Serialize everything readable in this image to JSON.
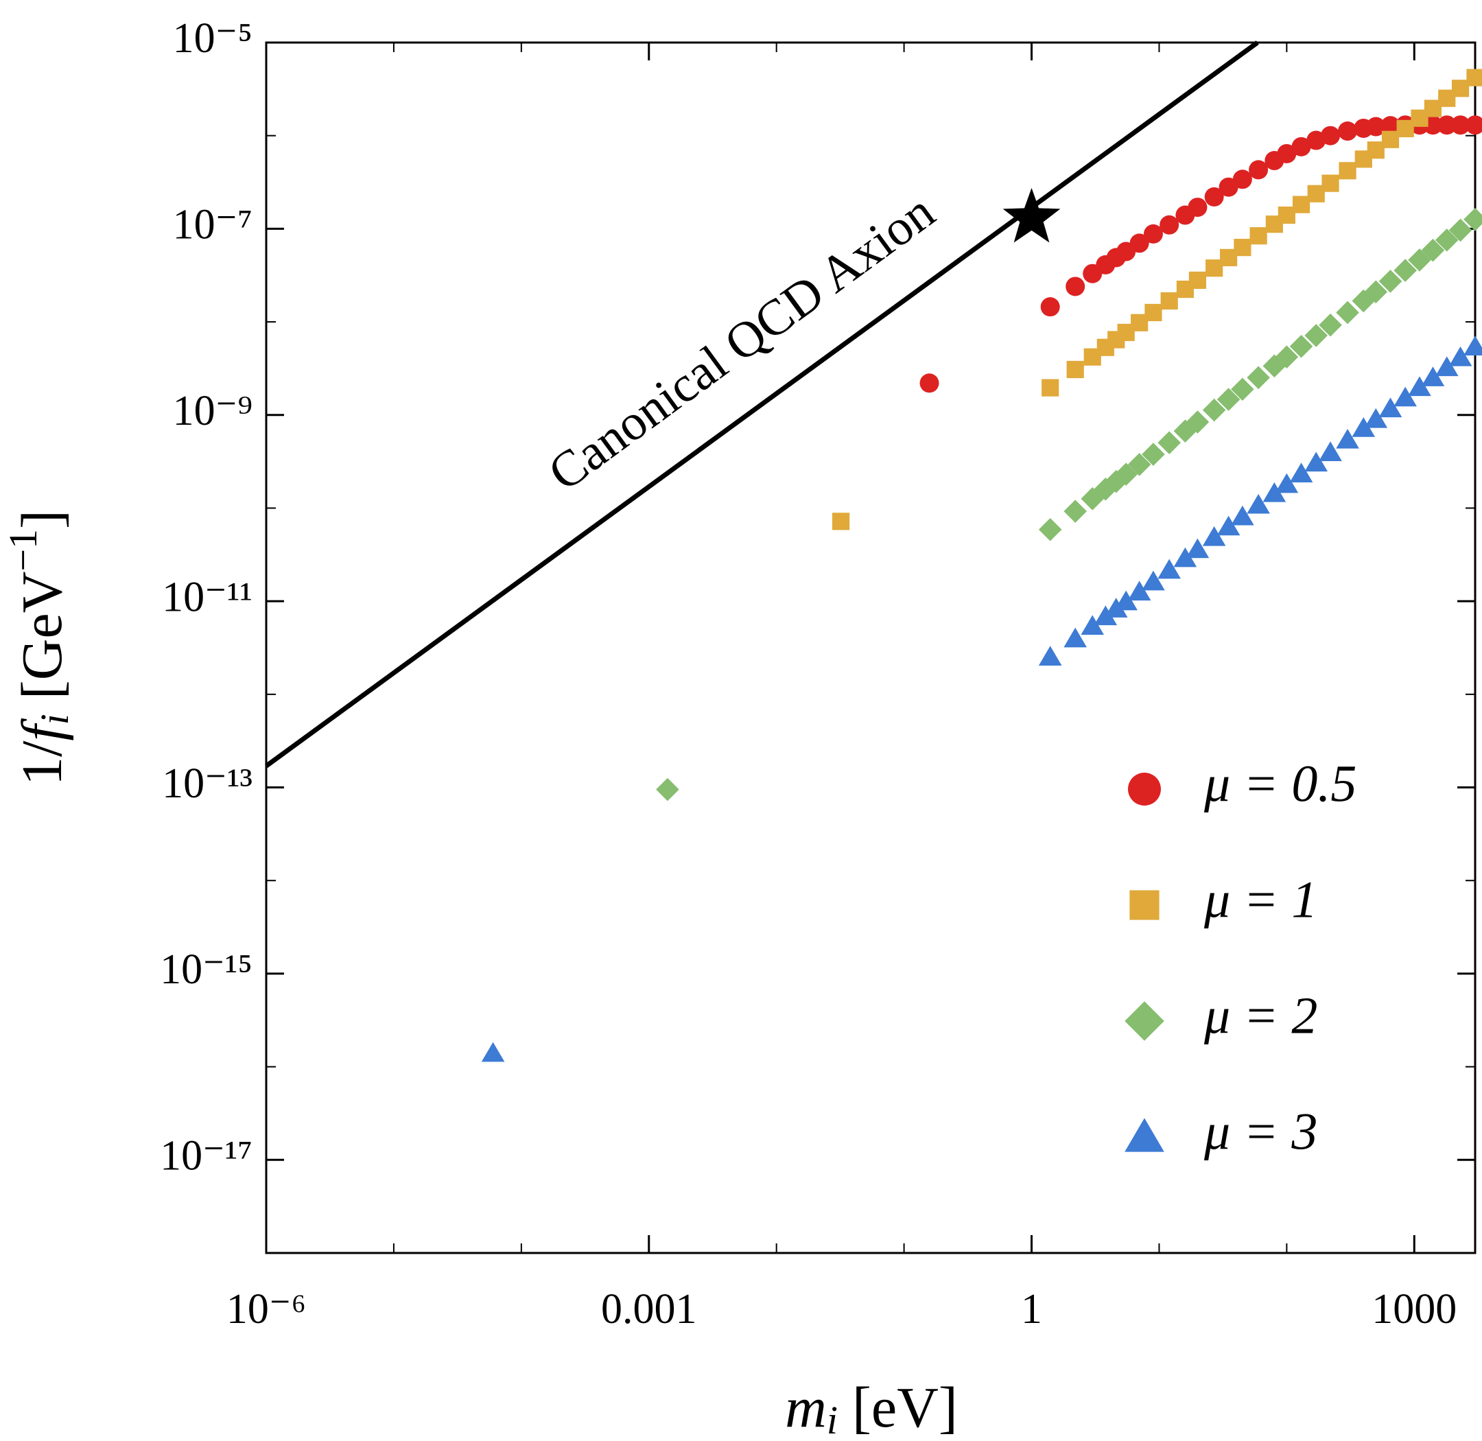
{
  "chart_data": {
    "type": "scatter",
    "xlog": true,
    "ylog": true,
    "xlim": [
      1e-06,
      3000
    ],
    "ylim": [
      1e-18,
      1e-05
    ],
    "xticks": [
      {
        "value": 1e-06,
        "label": "10⁻⁶"
      },
      0.001,
      1,
      1000
    ],
    "xticks_minor": [
      1e-05,
      0.0001,
      0.01,
      0.1,
      10,
      100
    ],
    "yticks": [
      {
        "value": 1e-05,
        "label": "10⁻⁵"
      },
      {
        "value": 1e-07,
        "label": "10⁻⁷"
      },
      {
        "value": 1e-09,
        "label": "10⁻⁹"
      },
      {
        "value": 1e-11,
        "label": "10⁻¹¹"
      },
      {
        "value": 1e-13,
        "label": "10⁻¹³"
      },
      {
        "value": 1e-15,
        "label": "10⁻¹⁵"
      },
      {
        "value": 1e-17,
        "label": "10⁻¹⁷"
      }
    ],
    "yticks_minor": [
      1e-06,
      1e-08,
      1e-10,
      1e-12,
      1e-14,
      1e-16,
      1e-18
    ],
    "xlabel": [
      "m",
      "i",
      " [eV]"
    ],
    "ylabel": [
      "1/",
      "f",
      "i",
      " [GeV",
      "−1",
      "]"
    ],
    "legend": "lower right",
    "line": {
      "name": "Canonical QCD Axion",
      "color": "#000000",
      "x": [
        1e-06,
        59
      ],
      "values": [
        1.7e-13,
        1e-05
      ]
    },
    "star": {
      "x": 1,
      "y": 1.3e-07,
      "color": "#000000"
    },
    "series": [
      {
        "name": "μ = 0.5",
        "color": "#dd2222",
        "marker": "circle",
        "x": [
          0.158,
          1.4,
          2.2,
          3,
          3.8,
          4.6,
          5.5,
          7,
          9,
          12,
          16,
          20,
          27,
          35,
          45,
          60,
          80,
          100,
          130,
          170,
          220,
          300,
          400,
          500,
          650,
          850,
          1100,
          1400,
          1800,
          2300,
          3000
        ],
        "values": [
          2.2e-09,
          1.45e-08,
          2.4e-08,
          3.3e-08,
          4.1e-08,
          4.9e-08,
          5.7e-08,
          7e-08,
          8.8e-08,
          1.1e-07,
          1.4e-07,
          1.7e-07,
          2.2e-07,
          2.8e-07,
          3.4e-07,
          4.3e-07,
          5.4e-07,
          6.4e-07,
          7.6e-07,
          8.9e-07,
          1e-06,
          1.12e-06,
          1.2e-06,
          1.25e-06,
          1.28e-06,
          1.3e-06,
          1.3e-06,
          1.3e-06,
          1.3e-06,
          1.3e-06,
          1.3e-06
        ]
      },
      {
        "name": "μ = 1",
        "color": "#e0a93a",
        "marker": "square",
        "x": [
          0.032,
          1.4,
          2.2,
          3,
          3.8,
          4.6,
          5.5,
          7,
          9,
          12,
          16,
          20,
          27,
          35,
          45,
          60,
          80,
          100,
          130,
          170,
          220,
          300,
          400,
          500,
          650,
          850,
          1100,
          1400,
          1800,
          2300,
          3000
        ],
        "values": [
          7.2e-11,
          1.96e-09,
          3.08e-09,
          4.2e-09,
          5.32e-09,
          6.44e-09,
          7.7e-09,
          9.8e-09,
          1.26e-08,
          1.68e-08,
          2.24e-08,
          2.8e-08,
          3.78e-08,
          4.9e-08,
          6.3e-08,
          8.4e-08,
          1.12e-07,
          1.4e-07,
          1.82e-07,
          2.38e-07,
          3.08e-07,
          4.2e-07,
          5.6e-07,
          7e-07,
          9.1e-07,
          1.19e-06,
          1.54e-06,
          1.96e-06,
          2.52e-06,
          3.22e-06,
          4.2e-06
        ]
      },
      {
        "name": "μ = 2",
        "color": "#86bd6e",
        "marker": "diamond",
        "x": [
          0.0014,
          1.4,
          2.2,
          3,
          3.8,
          4.6,
          5.5,
          7,
          9,
          12,
          16,
          20,
          27,
          35,
          45,
          60,
          80,
          100,
          130,
          170,
          220,
          300,
          400,
          500,
          650,
          850,
          1100,
          1400,
          1800,
          2300,
          3000
        ],
        "values": [
          9.5e-14,
          5.88e-11,
          9.24e-11,
          1.26e-10,
          1.6e-10,
          1.93e-10,
          2.31e-10,
          2.94e-10,
          3.78e-10,
          5.04e-10,
          6.72e-10,
          8.4e-10,
          1.13e-09,
          1.47e-09,
          1.89e-09,
          2.52e-09,
          3.36e-09,
          4.2e-09,
          5.46e-09,
          7.14e-09,
          9.24e-09,
          1.26e-08,
          1.68e-08,
          2.1e-08,
          2.73e-08,
          3.57e-08,
          4.62e-08,
          5.88e-08,
          7.56e-08,
          9.66e-08,
          1.26e-07
        ]
      },
      {
        "name": "μ = 3",
        "color": "#3d7bd4",
        "marker": "triangle",
        "x": [
          6e-05,
          1.4,
          2.2,
          3,
          3.8,
          4.6,
          5.5,
          7,
          9,
          12,
          16,
          20,
          27,
          35,
          45,
          60,
          80,
          100,
          130,
          170,
          220,
          300,
          400,
          500,
          650,
          850,
          1100,
          1400,
          1800,
          2300,
          3000
        ],
        "values": [
          1.4e-16,
          2.52e-12,
          3.96e-12,
          5.4e-12,
          6.84e-12,
          8.28e-12,
          9.9e-12,
          1.26e-11,
          1.62e-11,
          2.16e-11,
          2.88e-11,
          3.6e-11,
          4.86e-11,
          6.3e-11,
          8.1e-11,
          1.08e-10,
          1.44e-10,
          1.8e-10,
          2.34e-10,
          3.06e-10,
          3.96e-10,
          5.4e-10,
          7.2e-10,
          9e-10,
          1.17e-09,
          1.53e-09,
          1.98e-09,
          2.52e-09,
          3.24e-09,
          4.14e-09,
          5.4e-09
        ]
      }
    ]
  }
}
